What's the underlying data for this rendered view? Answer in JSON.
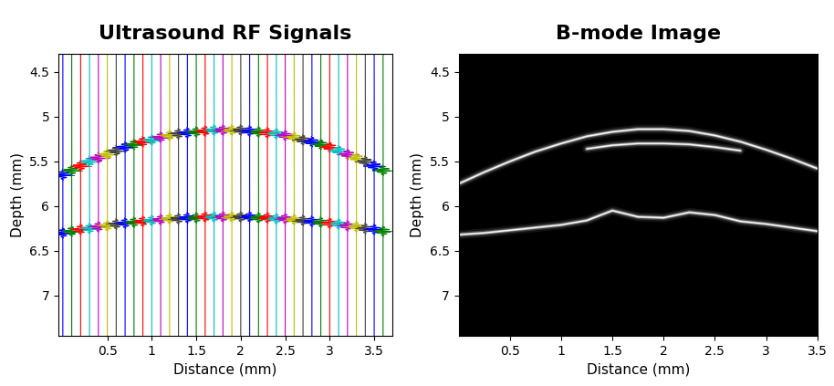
{
  "chart_data": [
    {
      "type": "rf_traces",
      "title": "Ultrasound RF Signals",
      "x_label": "Distance (mm)",
      "y_label": "Depth (mm)",
      "xlim": [
        -0.05,
        3.7
      ],
      "ylim": [
        7.45,
        4.3
      ],
      "xticks": [
        0.5,
        1,
        1.5,
        2,
        2.5,
        3,
        3.5
      ],
      "yticks": [
        4.5,
        5,
        5.5,
        6,
        6.5,
        7
      ],
      "x": [
        0.0,
        0.1,
        0.2,
        0.3,
        0.4,
        0.5,
        0.6,
        0.7,
        0.8,
        0.9,
        1.0,
        1.1,
        1.2,
        1.3,
        1.4,
        1.5,
        1.6,
        1.7,
        1.8,
        1.9,
        2.0,
        2.1,
        2.2,
        2.3,
        2.4,
        2.5,
        2.6,
        2.7,
        2.8,
        2.9,
        3.0,
        3.1,
        3.2,
        3.3,
        3.4,
        3.5,
        3.6
      ],
      "colors": [
        "#0000ff",
        "#008000",
        "#ff0000",
        "#00bfbf",
        "#bf00bf",
        "#bfbf00",
        "#404040",
        "#0000ff",
        "#008000",
        "#ff0000",
        "#00bfbf",
        "#bf00bf",
        "#bfbf00",
        "#404040",
        "#0000ff",
        "#008000",
        "#ff0000",
        "#00bfbf",
        "#bf00bf",
        "#bfbf00",
        "#404040",
        "#0000ff",
        "#008000",
        "#ff0000",
        "#00bfbf",
        "#bf00bf",
        "#bfbf00",
        "#404040",
        "#0000ff",
        "#008000",
        "#ff0000",
        "#00bfbf",
        "#bf00bf",
        "#bfbf00",
        "#404040",
        "#0000ff",
        "#008000"
      ],
      "echo_depths": [
        [
          5.65,
          5.6,
          5.55,
          5.5,
          5.46,
          5.42,
          5.38,
          5.34,
          5.31,
          5.28,
          5.26,
          5.23,
          5.21,
          5.19,
          5.18,
          5.17,
          5.16,
          5.15,
          5.15,
          5.15,
          5.15,
          5.16,
          5.17,
          5.18,
          5.19,
          5.21,
          5.23,
          5.26,
          5.28,
          5.31,
          5.34,
          5.38,
          5.42,
          5.46,
          5.5,
          5.55,
          5.6
        ],
        [
          6.3,
          6.28,
          6.26,
          6.25,
          6.23,
          6.22,
          6.2,
          6.19,
          6.18,
          6.17,
          6.16,
          6.15,
          6.14,
          6.14,
          6.13,
          6.13,
          6.12,
          6.12,
          6.12,
          6.12,
          6.12,
          6.12,
          6.13,
          6.13,
          6.14,
          6.14,
          6.15,
          6.16,
          6.17,
          6.18,
          6.19,
          6.2,
          6.22,
          6.23,
          6.25,
          6.26,
          6.28
        ]
      ]
    },
    {
      "type": "image",
      "title": "B-mode Image",
      "x_label": "Distance (mm)",
      "y_label": "Depth (mm)",
      "xlim": [
        0,
        3.5
      ],
      "ylim": [
        7.45,
        4.3
      ],
      "xticks": [
        0.5,
        1,
        1.5,
        2,
        2.5,
        3,
        3.5
      ],
      "yticks": [
        4.5,
        5,
        5.5,
        6,
        6.5,
        7
      ],
      "color": "#ffffff",
      "surfaces": [
        {
          "x": [
            0,
            0.25,
            0.5,
            0.75,
            1.0,
            1.25,
            1.5,
            1.75,
            2.0,
            2.25,
            2.5,
            2.75,
            3.0,
            3.25,
            3.5
          ],
          "depth": [
            5.75,
            5.62,
            5.5,
            5.39,
            5.3,
            5.22,
            5.17,
            5.14,
            5.14,
            5.16,
            5.21,
            5.28,
            5.37,
            5.47,
            5.58
          ]
        },
        {
          "x": [
            1.25,
            1.5,
            1.75,
            2.0,
            2.25,
            2.5,
            2.75
          ],
          "depth": [
            5.36,
            5.32,
            5.3,
            5.3,
            5.31,
            5.34,
            5.38
          ]
        },
        {
          "x": [
            0,
            0.25,
            0.5,
            0.75,
            1.0,
            1.25,
            1.5,
            1.75,
            2.0,
            2.25,
            2.5,
            2.75,
            3.0,
            3.25,
            3.5
          ],
          "depth": [
            6.32,
            6.3,
            6.27,
            6.24,
            6.21,
            6.16,
            6.05,
            6.12,
            6.13,
            6.07,
            6.1,
            6.17,
            6.2,
            6.24,
            6.28
          ]
        }
      ]
    }
  ]
}
